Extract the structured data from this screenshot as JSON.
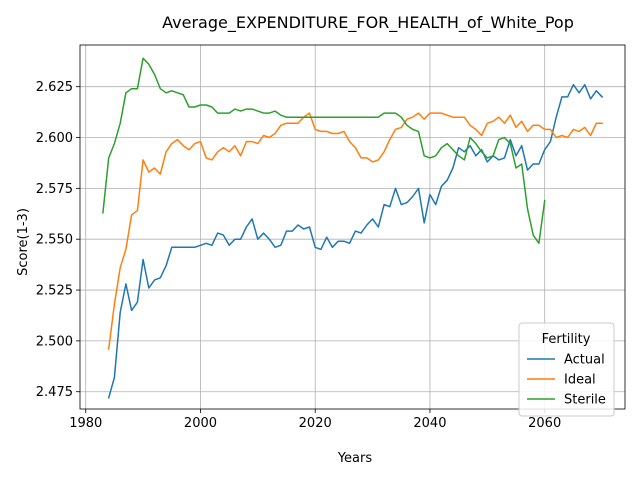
{
  "chart_data": {
    "type": "line",
    "title": "Average_EXPENDITURE_FOR_HEALTH_of_White_Pop",
    "xlabel": "Years",
    "ylabel": "Score(1-3)",
    "xlim": [
      1979,
      2074
    ],
    "ylim": [
      2.4665,
      2.6455
    ],
    "xticks": [
      1980,
      2000,
      2020,
      2040,
      2060
    ],
    "yticks": [
      2.475,
      2.5,
      2.525,
      2.55,
      2.575,
      2.6,
      2.625
    ],
    "xtick_labels": [
      "1980",
      "2000",
      "2020",
      "2040",
      "2060"
    ],
    "ytick_labels": [
      "2.475",
      "2.500",
      "2.525",
      "2.550",
      "2.575",
      "2.600",
      "2.625"
    ],
    "grid": true,
    "legend": {
      "title": "Fertility",
      "position": "lower-right"
    },
    "series": [
      {
        "name": "Actual",
        "color": "#1f77b4",
        "x": [
          1984,
          1985,
          1986,
          1987,
          1988,
          1989,
          1990,
          1991,
          1992,
          1993,
          1994,
          1995,
          1996,
          1997,
          1998,
          1999,
          2000,
          2001,
          2002,
          2003,
          2004,
          2005,
          2006,
          2007,
          2008,
          2009,
          2010,
          2011,
          2012,
          2013,
          2014,
          2015,
          2016,
          2017,
          2018,
          2019,
          2020,
          2021,
          2022,
          2023,
          2024,
          2025,
          2026,
          2027,
          2028,
          2029,
          2030,
          2031,
          2032,
          2033,
          2034,
          2035,
          2036,
          2037,
          2038,
          2039,
          2040,
          2041,
          2042,
          2043,
          2044,
          2045,
          2046,
          2047,
          2048,
          2049,
          2050,
          2051,
          2052,
          2053,
          2054,
          2055,
          2056,
          2057,
          2058,
          2059,
          2060,
          2061,
          2062,
          2063,
          2064,
          2065,
          2066,
          2067,
          2068,
          2069,
          2070
        ],
        "y": [
          2.472,
          2.482,
          2.514,
          2.528,
          2.515,
          2.519,
          2.54,
          2.526,
          2.53,
          2.531,
          2.537,
          2.546,
          2.546,
          2.546,
          2.546,
          2.546,
          2.547,
          2.548,
          2.547,
          2.553,
          2.552,
          2.547,
          2.55,
          2.55,
          2.556,
          2.56,
          2.55,
          2.553,
          2.55,
          2.546,
          2.547,
          2.554,
          2.554,
          2.557,
          2.555,
          2.556,
          2.546,
          2.545,
          2.551,
          2.546,
          2.549,
          2.549,
          2.548,
          2.554,
          2.553,
          2.557,
          2.56,
          2.556,
          2.567,
          2.566,
          2.575,
          2.567,
          2.568,
          2.571,
          2.575,
          2.558,
          2.572,
          2.567,
          2.576,
          2.579,
          2.585,
          2.595,
          2.593,
          2.596,
          2.591,
          2.594,
          2.588,
          2.591,
          2.589,
          2.59,
          2.599,
          2.591,
          2.596,
          2.584,
          2.587,
          2.587,
          2.594,
          2.598,
          2.61,
          2.62,
          2.62,
          2.626,
          2.622,
          2.626,
          2.619,
          2.623,
          2.62
        ]
      },
      {
        "name": "Ideal",
        "color": "#ff7f0e",
        "x": [
          1984,
          1985,
          1986,
          1987,
          1988,
          1989,
          1990,
          1991,
          1992,
          1993,
          1994,
          1995,
          1996,
          1997,
          1998,
          1999,
          2000,
          2001,
          2002,
          2003,
          2004,
          2005,
          2006,
          2007,
          2008,
          2009,
          2010,
          2011,
          2012,
          2013,
          2014,
          2015,
          2016,
          2017,
          2018,
          2019,
          2020,
          2021,
          2022,
          2023,
          2024,
          2025,
          2026,
          2027,
          2028,
          2029,
          2030,
          2031,
          2032,
          2033,
          2034,
          2035,
          2036,
          2037,
          2038,
          2039,
          2040,
          2041,
          2042,
          2043,
          2044,
          2045,
          2046,
          2047,
          2048,
          2049,
          2050,
          2051,
          2052,
          2053,
          2054,
          2055,
          2056,
          2057,
          2058,
          2059,
          2060,
          2061,
          2062,
          2063,
          2064,
          2065,
          2066,
          2067,
          2068,
          2069,
          2070
        ],
        "y": [
          2.496,
          2.518,
          2.536,
          2.545,
          2.562,
          2.564,
          2.589,
          2.583,
          2.585,
          2.582,
          2.593,
          2.597,
          2.599,
          2.596,
          2.594,
          2.597,
          2.598,
          2.59,
          2.589,
          2.593,
          2.595,
          2.593,
          2.596,
          2.591,
          2.598,
          2.598,
          2.597,
          2.601,
          2.6,
          2.602,
          2.606,
          2.607,
          2.607,
          2.607,
          2.61,
          2.612,
          2.604,
          2.603,
          2.603,
          2.602,
          2.602,
          2.603,
          2.598,
          2.595,
          2.59,
          2.59,
          2.588,
          2.589,
          2.593,
          2.599,
          2.604,
          2.605,
          2.609,
          2.61,
          2.612,
          2.609,
          2.612,
          2.612,
          2.612,
          2.611,
          2.61,
          2.61,
          2.61,
          2.606,
          2.604,
          2.601,
          2.607,
          2.608,
          2.61,
          2.607,
          2.611,
          2.605,
          2.608,
          2.603,
          2.606,
          2.606,
          2.604,
          2.604,
          2.6,
          2.601,
          2.6,
          2.604,
          2.603,
          2.605,
          2.601,
          2.607,
          2.607
        ]
      },
      {
        "name": "Sterile",
        "color": "#2ca02c",
        "x": [
          1983,
          1984,
          1985,
          1986,
          1987,
          1988,
          1989,
          1990,
          1991,
          1992,
          1993,
          1994,
          1995,
          1996,
          1997,
          1998,
          1999,
          2000,
          2001,
          2002,
          2003,
          2004,
          2005,
          2006,
          2007,
          2008,
          2009,
          2010,
          2011,
          2012,
          2013,
          2014,
          2015,
          2016,
          2017,
          2018,
          2019,
          2020,
          2021,
          2022,
          2023,
          2024,
          2025,
          2026,
          2027,
          2028,
          2029,
          2030,
          2031,
          2032,
          2033,
          2034,
          2035,
          2036,
          2037,
          2038,
          2039,
          2040,
          2041,
          2042,
          2043,
          2044,
          2045,
          2046,
          2047,
          2048,
          2049,
          2050,
          2051,
          2052,
          2053,
          2054,
          2055,
          2056,
          2057,
          2058,
          2059,
          2060
        ],
        "y": [
          2.563,
          2.59,
          2.597,
          2.607,
          2.622,
          2.624,
          2.624,
          2.639,
          2.636,
          2.631,
          2.624,
          2.622,
          2.623,
          2.622,
          2.621,
          2.615,
          2.615,
          2.616,
          2.616,
          2.615,
          2.612,
          2.612,
          2.612,
          2.614,
          2.613,
          2.614,
          2.614,
          2.613,
          2.612,
          2.612,
          2.613,
          2.611,
          2.61,
          2.61,
          2.61,
          2.61,
          2.61,
          2.61,
          2.61,
          2.61,
          2.61,
          2.61,
          2.61,
          2.61,
          2.61,
          2.61,
          2.61,
          2.61,
          2.61,
          2.612,
          2.612,
          2.612,
          2.61,
          2.606,
          2.604,
          2.603,
          2.591,
          2.59,
          2.591,
          2.595,
          2.597,
          2.594,
          2.591,
          2.589,
          2.6,
          2.597,
          2.593,
          2.59,
          2.591,
          2.599,
          2.6,
          2.597,
          2.585,
          2.587,
          2.565,
          2.552,
          2.548,
          2.569
        ]
      }
    ]
  }
}
